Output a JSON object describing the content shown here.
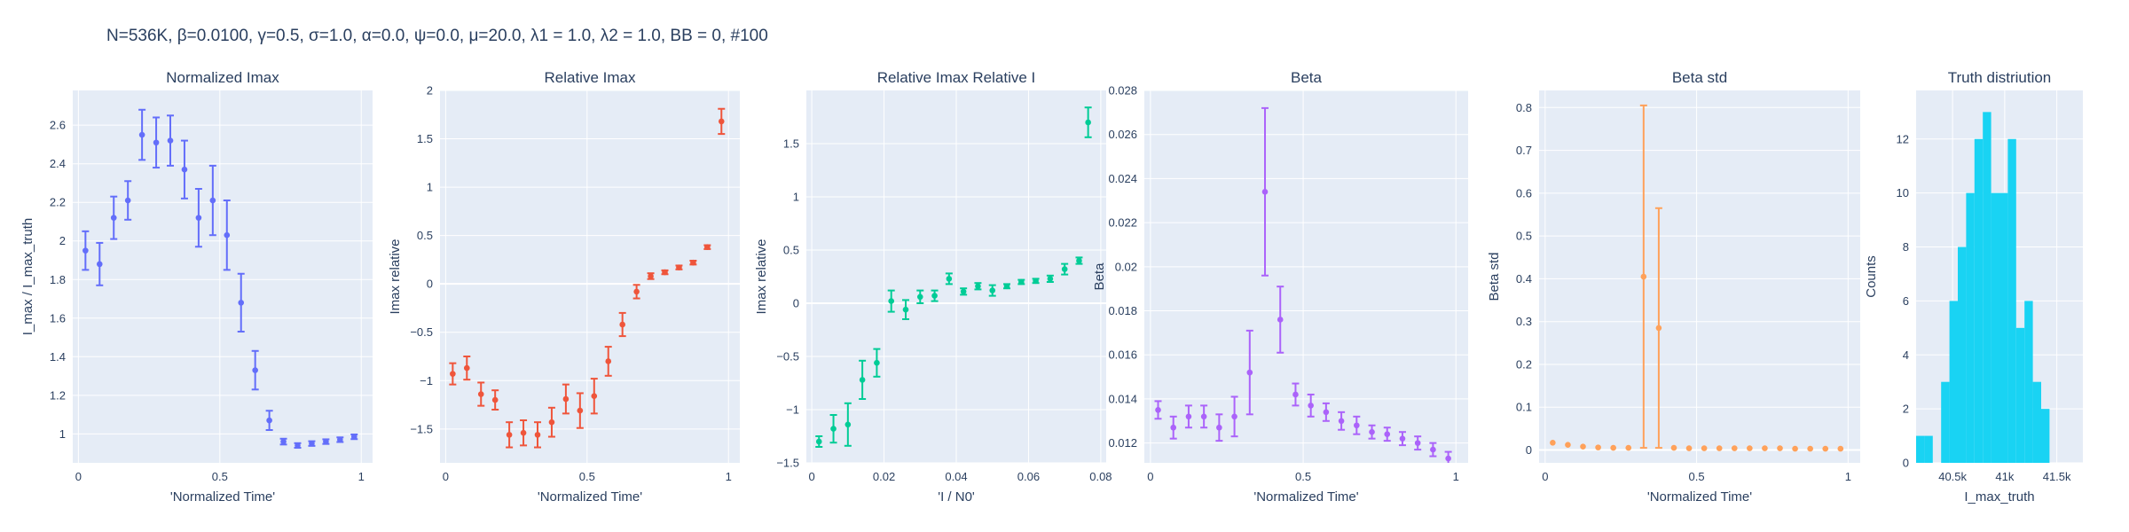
{
  "figure_title": "N=536K, β=0.0100, γ=0.5, σ=1.0,  α=0.0, ψ=0.0, μ=20.0, λ1 = 1.0, λ2 = 1.0, BB = 0, #100",
  "chart_data": [
    {
      "type": "scatter",
      "title": "Normalized Imax",
      "xlabel": "'Normalized Time'",
      "ylabel": "I_max / I_max_truth",
      "color": "#636efa",
      "xlim": [
        -0.02,
        1.04
      ],
      "ylim": [
        0.85,
        2.78
      ],
      "xticks": [
        0,
        0.5,
        1
      ],
      "yticks": [
        1,
        1.2,
        1.4,
        1.6,
        1.8,
        2,
        2.2,
        2.4,
        2.6
      ],
      "tick_decimals": 1,
      "x": [
        0.025,
        0.075,
        0.125,
        0.175,
        0.225,
        0.275,
        0.325,
        0.375,
        0.425,
        0.475,
        0.525,
        0.575,
        0.625,
        0.675,
        0.725,
        0.775,
        0.825,
        0.875,
        0.925,
        0.975
      ],
      "y": [
        1.95,
        1.88,
        2.12,
        2.21,
        2.55,
        2.51,
        2.52,
        2.37,
        2.12,
        2.21,
        2.03,
        1.68,
        1.33,
        1.07,
        0.96,
        0.94,
        0.95,
        0.96,
        0.97,
        0.985
      ],
      "err": [
        0.1,
        0.11,
        0.11,
        0.1,
        0.13,
        0.13,
        0.13,
        0.15,
        0.15,
        0.18,
        0.18,
        0.15,
        0.1,
        0.05,
        0.015,
        0.012,
        0.012,
        0.012,
        0.012,
        0.012
      ]
    },
    {
      "type": "scatter",
      "title": "Relative Imax",
      "xlabel": "'Normalized Time'",
      "ylabel": "Imax relative",
      "color": "#ef553b",
      "xlim": [
        -0.02,
        1.04
      ],
      "ylim": [
        -1.85,
        2.0
      ],
      "xticks": [
        0,
        0.5,
        1
      ],
      "yticks": [
        -1.5,
        -1,
        -0.5,
        0,
        0.5,
        1,
        1.5,
        2
      ],
      "tick_decimals": 1,
      "x": [
        0.025,
        0.075,
        0.125,
        0.175,
        0.225,
        0.275,
        0.325,
        0.375,
        0.425,
        0.475,
        0.525,
        0.575,
        0.625,
        0.675,
        0.725,
        0.775,
        0.825,
        0.875,
        0.925,
        0.975
      ],
      "y": [
        -0.93,
        -0.87,
        -1.14,
        -1.2,
        -1.56,
        -1.54,
        -1.56,
        -1.43,
        -1.19,
        -1.31,
        -1.16,
        -0.8,
        -0.42,
        -0.08,
        0.08,
        0.12,
        0.17,
        0.22,
        0.38,
        1.68
      ],
      "err": [
        0.11,
        0.12,
        0.12,
        0.1,
        0.13,
        0.13,
        0.13,
        0.15,
        0.15,
        0.18,
        0.18,
        0.15,
        0.12,
        0.07,
        0.03,
        0.02,
        0.02,
        0.02,
        0.02,
        0.13
      ]
    },
    {
      "type": "scatter",
      "title": "Relative Imax Relative I",
      "xlabel": "'I / N0'",
      "ylabel": "Imax relative",
      "color": "#00cc96",
      "xlim": [
        -0.0015,
        0.0815
      ],
      "ylim": [
        -1.5,
        2.0
      ],
      "xticks": [
        0,
        0.02,
        0.04,
        0.06,
        0.08
      ],
      "yticks": [
        -1.5,
        -1,
        -0.5,
        0,
        0.5,
        1,
        1.5
      ],
      "tick_decimals": 2,
      "x": [
        0.002,
        0.006,
        0.01,
        0.014,
        0.018,
        0.022,
        0.026,
        0.03,
        0.034,
        0.038,
        0.042,
        0.046,
        0.05,
        0.054,
        0.058,
        0.062,
        0.066,
        0.07,
        0.074,
        0.0765
      ],
      "y": [
        -1.3,
        -1.18,
        -1.14,
        -0.72,
        -0.56,
        0.02,
        -0.06,
        0.06,
        0.07,
        0.23,
        0.11,
        0.16,
        0.12,
        0.16,
        0.2,
        0.21,
        0.23,
        0.32,
        0.4,
        1.7
      ],
      "err": [
        0.05,
        0.13,
        0.2,
        0.18,
        0.13,
        0.1,
        0.09,
        0.06,
        0.05,
        0.05,
        0.03,
        0.03,
        0.05,
        0.02,
        0.02,
        0.02,
        0.03,
        0.05,
        0.03,
        0.14
      ]
    },
    {
      "type": "scatter",
      "title": "Beta",
      "xlabel": "'Normalized Time'",
      "ylabel": "Beta",
      "color": "#ab63fa",
      "xlim": [
        -0.02,
        1.04
      ],
      "ylim": [
        0.0111,
        0.028
      ],
      "xticks": [
        0,
        0.5,
        1
      ],
      "yticks": [
        0.012,
        0.014,
        0.016,
        0.018,
        0.02,
        0.022,
        0.024,
        0.026,
        0.028
      ],
      "tick_decimals": 3,
      "x": [
        0.025,
        0.075,
        0.125,
        0.175,
        0.225,
        0.275,
        0.325,
        0.375,
        0.425,
        0.475,
        0.525,
        0.575,
        0.625,
        0.675,
        0.725,
        0.775,
        0.825,
        0.875,
        0.925,
        0.975
      ],
      "y": [
        0.0135,
        0.0127,
        0.0132,
        0.0132,
        0.0127,
        0.0132,
        0.0152,
        0.0234,
        0.0176,
        0.0142,
        0.0137,
        0.0134,
        0.013,
        0.0128,
        0.0125,
        0.0124,
        0.0122,
        0.012,
        0.0117,
        0.0113
      ],
      "err": [
        0.0004,
        0.0005,
        0.0005,
        0.0005,
        0.0006,
        0.0009,
        0.0019,
        0.0038,
        0.0015,
        0.0005,
        0.0005,
        0.0004,
        0.0004,
        0.0004,
        0.0003,
        0.0003,
        0.0003,
        0.0003,
        0.0003,
        0.0003
      ]
    },
    {
      "type": "scatter",
      "title": "Beta std",
      "xlabel": "'Normalized Time'",
      "ylabel": "Beta std",
      "color": "#ffa15a",
      "xlim": [
        -0.02,
        1.04
      ],
      "ylim": [
        -0.03,
        0.84
      ],
      "xticks": [
        0,
        0.5,
        1
      ],
      "yticks": [
        0,
        0.1,
        0.2,
        0.3,
        0.4,
        0.5,
        0.6,
        0.7,
        0.8
      ],
      "tick_decimals": 1,
      "x": [
        0.025,
        0.075,
        0.125,
        0.175,
        0.225,
        0.275,
        0.325,
        0.375,
        0.425,
        0.475,
        0.525,
        0.575,
        0.625,
        0.675,
        0.725,
        0.775,
        0.825,
        0.875,
        0.925,
        0.975
      ],
      "y": [
        0.017,
        0.012,
        0.008,
        0.006,
        0.005,
        0.005,
        0.405,
        0.285,
        0.005,
        0.004,
        0.004,
        0.004,
        0.004,
        0.004,
        0.004,
        0.004,
        0.003,
        0.003,
        0.003,
        0.003
      ],
      "err": [
        0,
        0,
        0,
        0,
        0,
        0,
        0.4,
        0.28,
        0,
        0,
        0,
        0,
        0,
        0,
        0,
        0,
        0,
        0,
        0,
        0
      ]
    },
    {
      "type": "histogram",
      "title": "Truth distriution",
      "xlabel": "I_max_truth",
      "ylabel": "Counts",
      "color": "#19d3f3",
      "xlim": [
        40150,
        41750
      ],
      "ylim": [
        0,
        13.8
      ],
      "xticks": [
        40500,
        41000,
        41500
      ],
      "xtick_labels": [
        "40.5k",
        "41k",
        "41.5k"
      ],
      "yticks": [
        0,
        2,
        4,
        6,
        8,
        10,
        12
      ],
      "tick_decimals": 0,
      "bin_start": 40150,
      "bin_width": 80,
      "counts": [
        1,
        1,
        0,
        3,
        6,
        8,
        10,
        12,
        13,
        10,
        10,
        12,
        5,
        6,
        3,
        2
      ]
    }
  ]
}
